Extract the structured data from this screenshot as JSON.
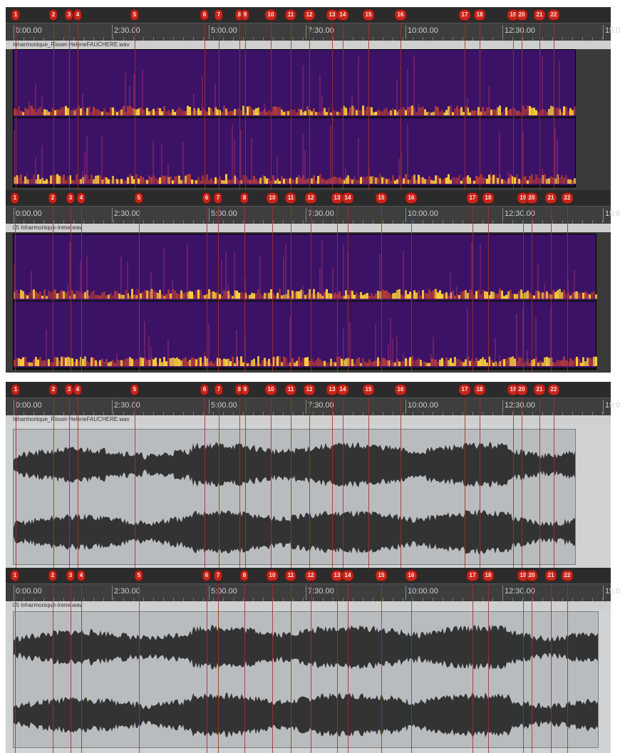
{
  "time_labels": [
    "0:00.00",
    "2:30.00",
    "5:00.00",
    "7:30.00",
    "10:00.00",
    "12:30.00",
    "15:0"
  ],
  "files": {
    "helene": "Inharmonique_Risset-HeleneFAUCHERE.wav",
    "irene": "05 Inharmonique-Irene.wav"
  },
  "markers_helene": [
    {
      "label": "1"
    },
    {
      "label": "2"
    },
    {
      "label": "3"
    },
    {
      "label": "4"
    },
    {
      "label": "5"
    },
    {
      "label": "6"
    },
    {
      "label": "7"
    },
    {
      "label": "8"
    },
    {
      "label": "9"
    },
    {
      "label": "10"
    },
    {
      "label": "11"
    },
    {
      "label": "12"
    },
    {
      "label": "13"
    },
    {
      "label": "14"
    },
    {
      "label": "15"
    },
    {
      "label": "16"
    },
    {
      "label": "17"
    },
    {
      "label": "18"
    },
    {
      "label": "19"
    },
    {
      "label": "20"
    },
    {
      "label": "21"
    },
    {
      "label": "22"
    }
  ],
  "markers_irene": [
    {
      "label": "1"
    },
    {
      "label": "2"
    },
    {
      "label": "3"
    },
    {
      "label": "4"
    },
    {
      "label": "5"
    },
    {
      "label": "6"
    },
    {
      "label": "7"
    },
    {
      "label": "8"
    },
    {
      "label": "10"
    },
    {
      "label": "11"
    },
    {
      "label": "12"
    },
    {
      "label": "13"
    },
    {
      "label": "14"
    },
    {
      "label": "15"
    },
    {
      "label": "16"
    },
    {
      "label": "17"
    },
    {
      "label": "18"
    },
    {
      "label": "19"
    },
    {
      "label": "20"
    },
    {
      "label": "21"
    },
    {
      "label": "22"
    }
  ],
  "colors": {
    "marker": "#c8261c",
    "marker_line": "#a3302a",
    "spectrogram_bg": "#2a0a45",
    "spectrogram_hot": "#ffd23a",
    "waveform": "#333333",
    "waveform_bg": "#b9bcbf"
  }
}
